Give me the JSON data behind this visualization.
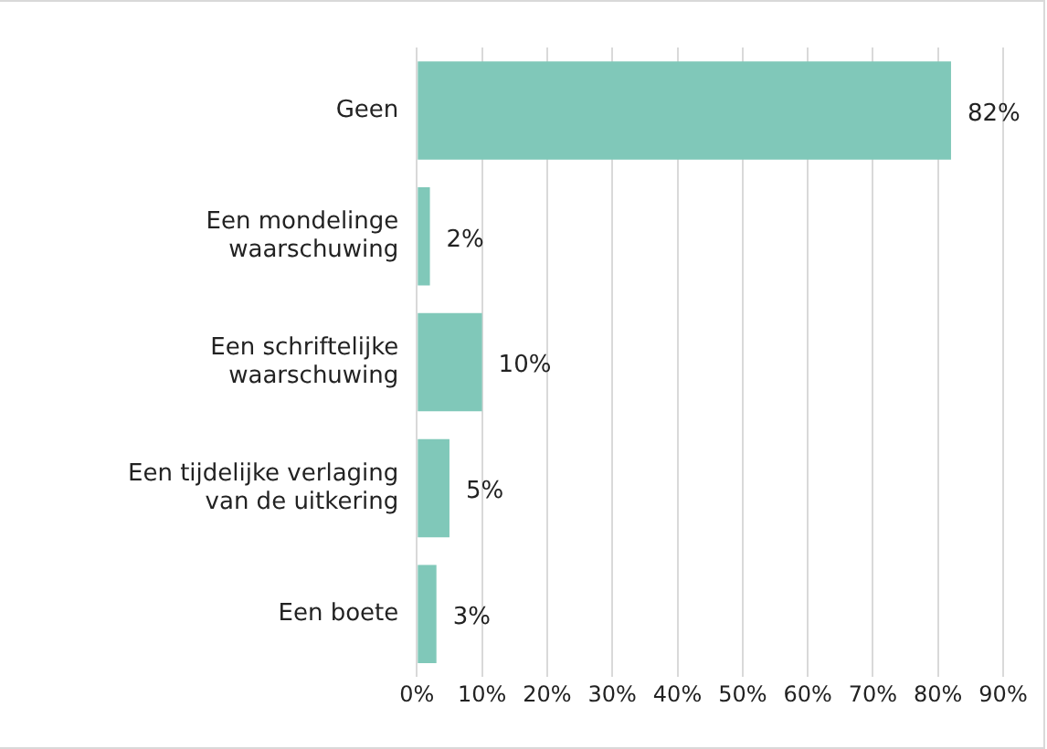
{
  "chart_data": {
    "type": "bar",
    "orientation": "horizontal",
    "categories": [
      "Geen",
      "Een mondelinge waarschuwing",
      "Een schriftelijke waarschuwing",
      "Een tijdelijke verlaging van de uitkering",
      "Een boete"
    ],
    "values": [
      82,
      2,
      10,
      5,
      3
    ],
    "value_labels": [
      "82%",
      "2%",
      "10%",
      "5%",
      "3%"
    ],
    "color": "#80c8b9",
    "xlim": [
      0,
      90
    ],
    "xticks": [
      {
        "value": 0,
        "label": "0%"
      },
      {
        "value": 10,
        "label": "10%"
      },
      {
        "value": 20,
        "label": "20%"
      },
      {
        "value": 30,
        "label": "30%"
      },
      {
        "value": 40,
        "label": "40%"
      },
      {
        "value": 50,
        "label": "50%"
      },
      {
        "value": 60,
        "label": "60%"
      },
      {
        "value": 70,
        "label": "70%"
      },
      {
        "value": 80,
        "label": "80%"
      },
      {
        "value": 90,
        "label": "90%"
      }
    ],
    "grid": "x",
    "legend": false
  }
}
